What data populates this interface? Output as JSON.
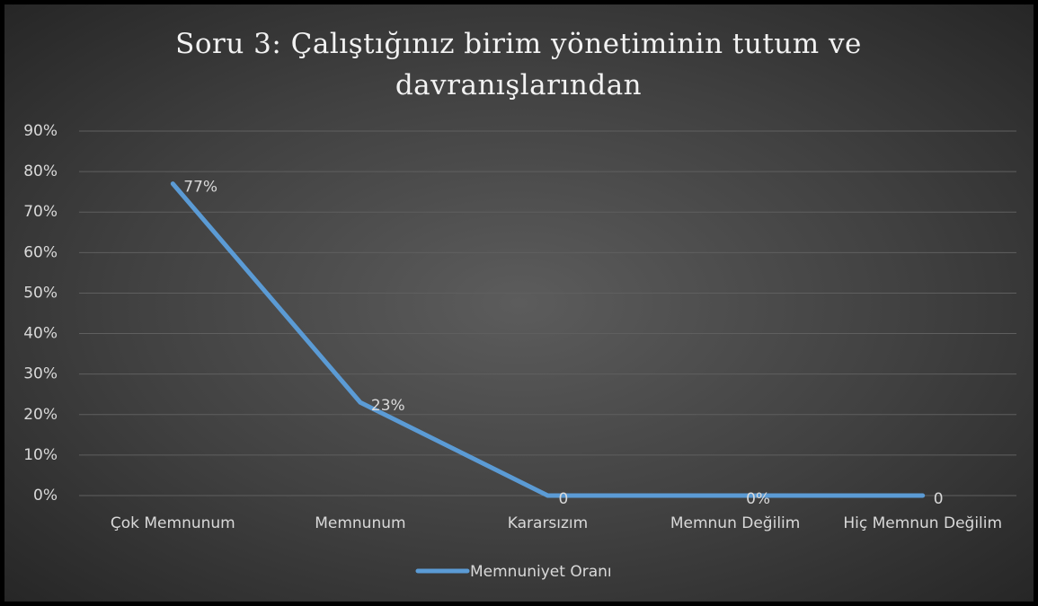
{
  "chart_data": {
    "type": "line",
    "title": "Soru 3: Çalıştığınız birim yönetiminin tutum ve davranışlarından",
    "categories": [
      "Çok Memnunum",
      "Memnunum",
      "Kararsızım",
      "Memnun Değilim",
      "Hiç Memnun Değilim"
    ],
    "series": [
      {
        "name": "Memnuniyet Oranı",
        "color": "#5b9bd5",
        "values": [
          77,
          23,
          0,
          0,
          0
        ],
        "value_labels": [
          "77%",
          "23%",
          "0",
          "0%",
          "0"
        ]
      }
    ],
    "ylim": [
      0,
      90
    ],
    "yticks": [
      {
        "value": 0,
        "label": "0%"
      },
      {
        "value": 10,
        "label": "10%"
      },
      {
        "value": 20,
        "label": "20%"
      },
      {
        "value": 30,
        "label": "30%"
      },
      {
        "value": 40,
        "label": "40%"
      },
      {
        "value": 50,
        "label": "50%"
      },
      {
        "value": 60,
        "label": "60%"
      },
      {
        "value": 70,
        "label": "70%"
      },
      {
        "value": 80,
        "label": "80%"
      },
      {
        "value": 90,
        "label": "90%"
      }
    ],
    "grid": true,
    "legend": "bottom"
  }
}
